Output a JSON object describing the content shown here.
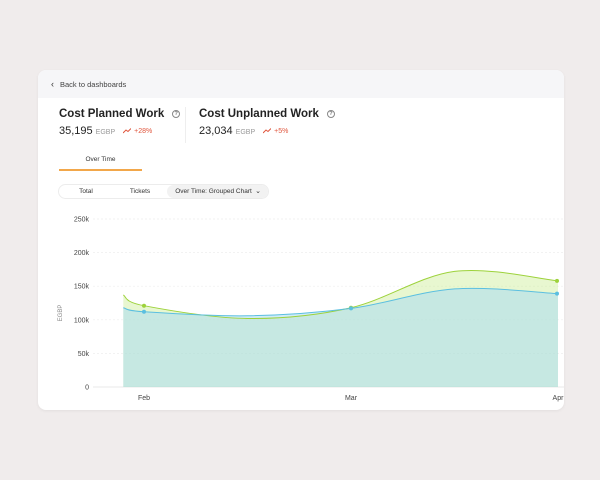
{
  "nav": {
    "back_label": "Back to dashboards"
  },
  "kpis": [
    {
      "title": "Cost Planned Work",
      "value": "35,195",
      "unit": "EGBP",
      "change": "+28%"
    },
    {
      "title": "Cost Unplanned Work",
      "value": "23,034",
      "unit": "EGBP",
      "change": "+5%"
    }
  ],
  "tabs": [
    {
      "label": "Over Time"
    }
  ],
  "view_options": {
    "total": "Total",
    "tickets": "Tickets",
    "grouped": "Over Time: Grouped Chart"
  },
  "colors": {
    "accent": "#f2a74a",
    "trend": "#e0553c",
    "planned": "#9dd23b",
    "unplanned": "#5bbfe0"
  },
  "chart_data": {
    "type": "area",
    "title": "",
    "xlabel": "",
    "ylabel": "EGBP",
    "ylim": [
      0,
      250000
    ],
    "yticks": [
      "250k",
      "200k",
      "150k",
      "100k",
      "50k",
      "0"
    ],
    "x_labels": [
      "Feb",
      "Mar",
      "Apr"
    ],
    "series": [
      {
        "name": "Cost Planned Work",
        "points": [
          [
            0.9,
            137000
          ],
          [
            1.0,
            121000
          ],
          [
            1.5,
            102000
          ],
          [
            2.0,
            118000
          ],
          [
            2.5,
            172000
          ],
          [
            3.0,
            158000
          ]
        ]
      },
      {
        "name": "Cost Unplanned Work",
        "points": [
          [
            0.9,
            118000
          ],
          [
            1.0,
            112000
          ],
          [
            1.5,
            106000
          ],
          [
            2.0,
            117000
          ],
          [
            2.5,
            146000
          ],
          [
            3.0,
            139000
          ]
        ]
      }
    ]
  }
}
